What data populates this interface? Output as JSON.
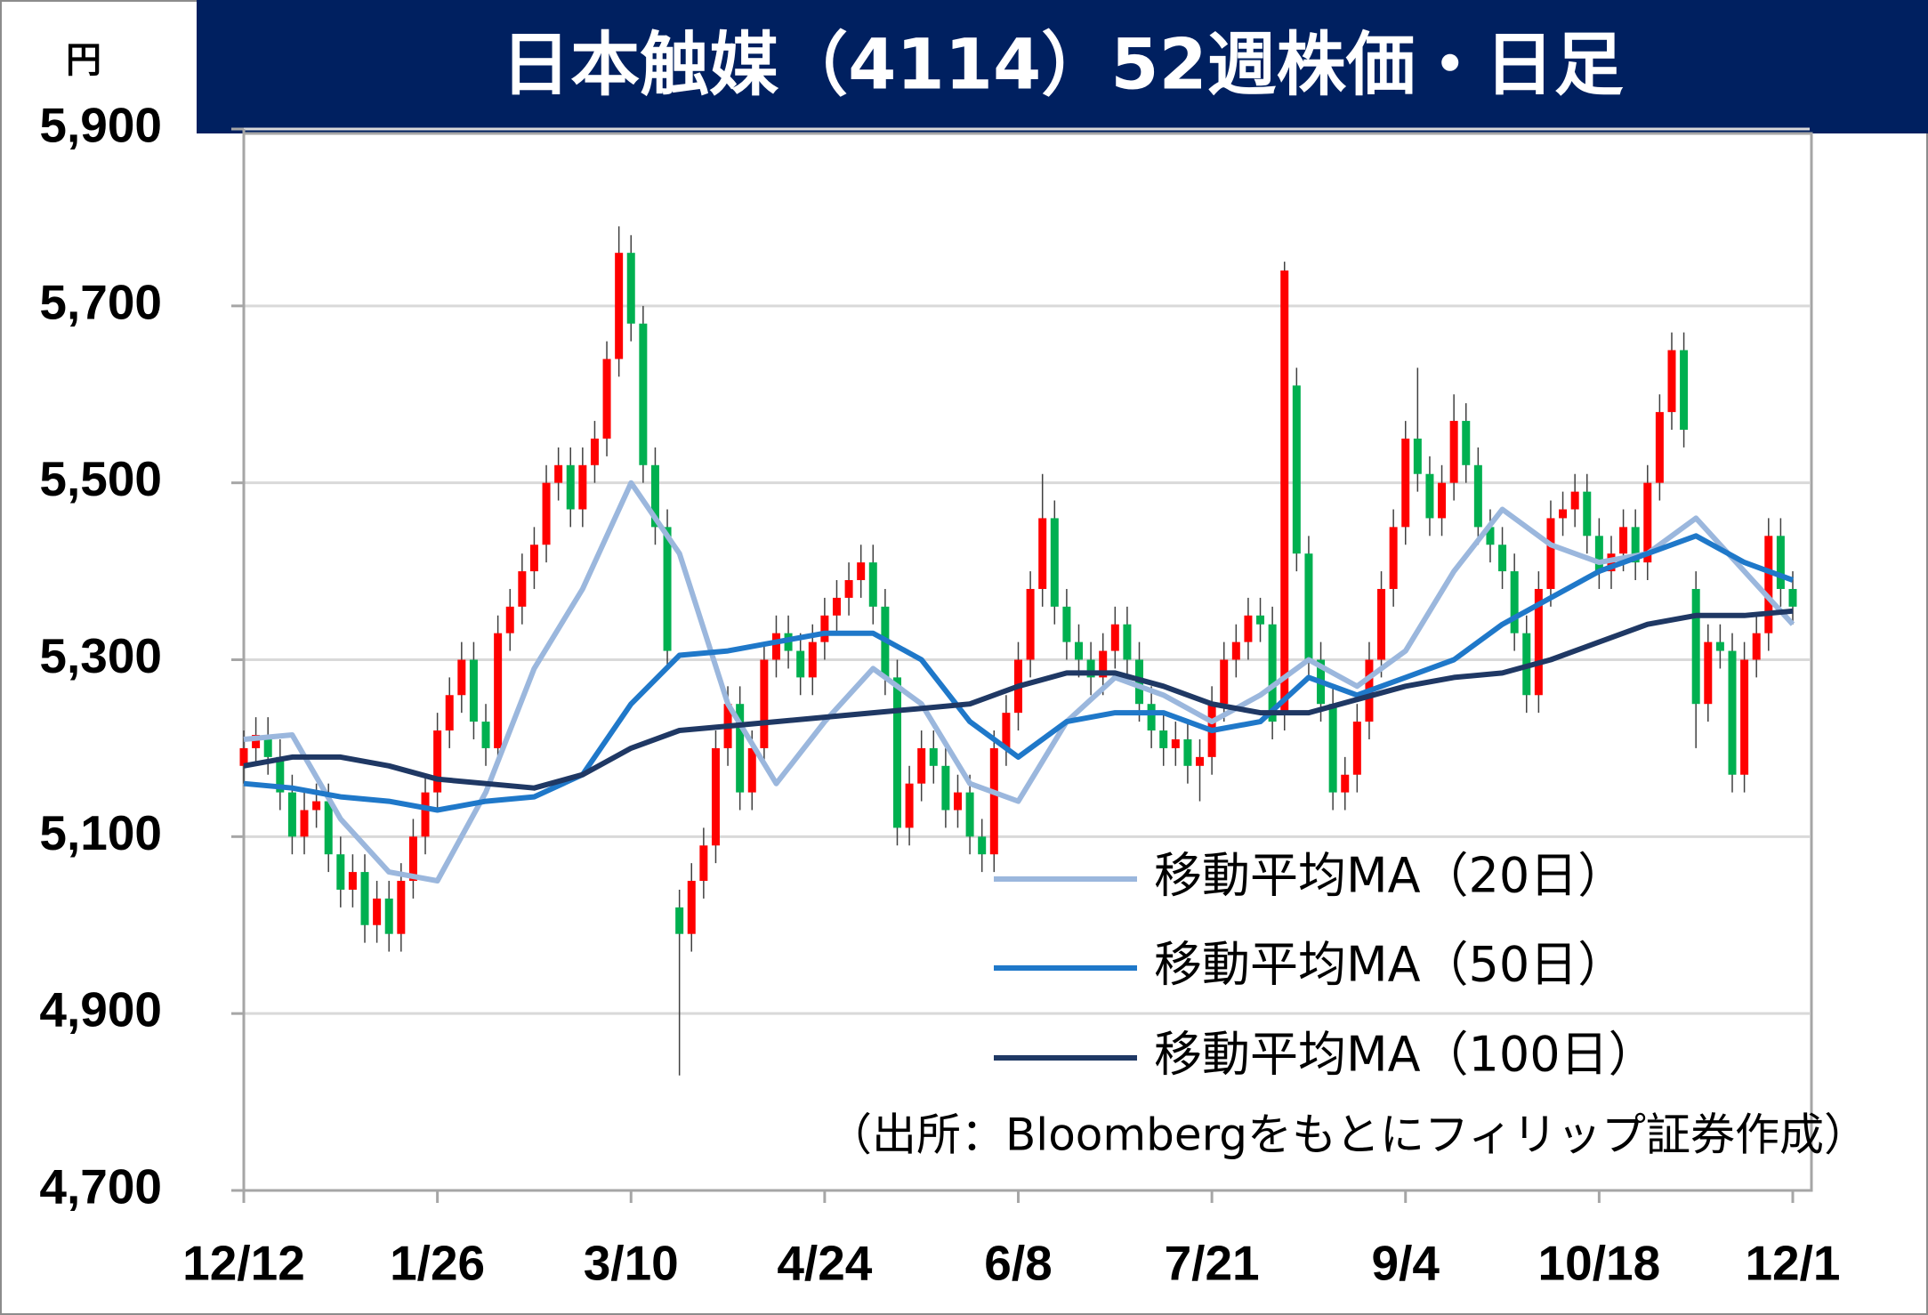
{
  "chart_data": {
    "type": "candlestick",
    "title": "日本触媒（4114）52週株価・日足",
    "y_unit": "円",
    "source": "（出所：Bloombergをもとにフィリップ証券作成）",
    "categories": [
      "12/12",
      null,
      null,
      null,
      null,
      null,
      null,
      null,
      null,
      null,
      null,
      null,
      null,
      null,
      null,
      null,
      "1/26",
      null,
      null,
      null,
      null,
      null,
      null,
      null,
      null,
      null,
      null,
      null,
      null,
      null,
      null,
      null,
      "3/10",
      null,
      null,
      null,
      null,
      null,
      null,
      null,
      null,
      null,
      null,
      null,
      null,
      null,
      null,
      null,
      "4/24",
      null,
      null,
      null,
      null,
      null,
      null,
      null,
      null,
      null,
      null,
      null,
      null,
      null,
      null,
      null,
      "6/8",
      null,
      null,
      null,
      null,
      null,
      null,
      null,
      null,
      null,
      null,
      null,
      null,
      null,
      null,
      null,
      "7/21",
      null,
      null,
      null,
      null,
      null,
      null,
      null,
      null,
      null,
      null,
      null,
      null,
      null,
      null,
      null,
      "9/4",
      null,
      null,
      null,
      null,
      null,
      null,
      null,
      null,
      null,
      null,
      null,
      null,
      null,
      null,
      null,
      "10/18",
      null,
      null,
      null,
      null,
      null,
      null,
      null,
      null,
      null,
      null,
      null,
      null,
      null,
      null,
      null,
      "12/1"
    ],
    "open": [
      5180,
      5200,
      5215,
      5190,
      5150,
      5100,
      5130,
      5140,
      5080,
      5040,
      5060,
      5000,
      5030,
      4990,
      5050,
      5100,
      5150,
      5220,
      5260,
      5300,
      5230,
      5200,
      5330,
      5360,
      5400,
      5430,
      5500,
      5520,
      5470,
      5520,
      5550,
      5640,
      5760,
      5680,
      5520,
      5450,
      5020,
      4990,
      5050,
      5090,
      5200,
      5250,
      5150,
      5200,
      5300,
      5330,
      5310,
      5280,
      5320,
      5350,
      5370,
      5390,
      5410,
      5360,
      5280,
      5110,
      5160,
      5200,
      5180,
      5130,
      5150,
      5100,
      5080,
      5200,
      5240,
      5300,
      5380,
      5460,
      5360,
      5320,
      5300,
      5280,
      5310,
      5340,
      5300,
      5250,
      5220,
      5200,
      5210,
      5180,
      5190,
      5250,
      5300,
      5320,
      5350,
      5340,
      5240,
      5610,
      5420,
      5300,
      5250,
      5150,
      5170,
      5230,
      5300,
      5380,
      5450,
      5550,
      5510,
      5460,
      5500,
      5570,
      5520,
      5450,
      5430,
      5400,
      5330,
      5260,
      5380,
      5460,
      5470,
      5490,
      5440,
      5400,
      5420,
      5450,
      5410,
      5500,
      5580,
      5650,
      5380,
      5250,
      5320,
      5310,
      5170,
      5300,
      5330,
      5440,
      5380
    ],
    "high": [
      5220,
      5235,
      5235,
      5210,
      5170,
      5150,
      5160,
      5160,
      5100,
      5080,
      5080,
      5050,
      5050,
      5070,
      5120,
      5170,
      5240,
      5280,
      5320,
      5320,
      5250,
      5350,
      5380,
      5420,
      5450,
      5520,
      5540,
      5540,
      5540,
      5570,
      5660,
      5790,
      5780,
      5700,
      5540,
      5470,
      5040,
      5070,
      5110,
      5220,
      5270,
      5270,
      5220,
      5320,
      5350,
      5350,
      5330,
      5340,
      5370,
      5390,
      5410,
      5430,
      5430,
      5380,
      5300,
      5180,
      5220,
      5220,
      5200,
      5170,
      5170,
      5120,
      5220,
      5260,
      5320,
      5400,
      5510,
      5480,
      5380,
      5340,
      5320,
      5330,
      5360,
      5360,
      5320,
      5270,
      5240,
      5230,
      5230,
      5210,
      5270,
      5320,
      5340,
      5370,
      5370,
      5360,
      5750,
      5630,
      5440,
      5320,
      5270,
      5190,
      5250,
      5320,
      5400,
      5470,
      5570,
      5630,
      5530,
      5520,
      5600,
      5590,
      5540,
      5470,
      5450,
      5420,
      5350,
      5400,
      5480,
      5490,
      5510,
      5510,
      5460,
      5440,
      5470,
      5470,
      5520,
      5600,
      5670,
      5670,
      5400,
      5340,
      5340,
      5330,
      5320,
      5350,
      5460,
      5460,
      5400
    ],
    "low": [
      5160,
      5180,
      5170,
      5130,
      5080,
      5080,
      5110,
      5060,
      5020,
      5020,
      4980,
      4980,
      4970,
      4970,
      5030,
      5080,
      5130,
      5200,
      5240,
      5210,
      5180,
      5180,
      5310,
      5340,
      5380,
      5410,
      5480,
      5450,
      5450,
      5500,
      5530,
      5620,
      5660,
      5500,
      5430,
      5290,
      4830,
      4970,
      5030,
      5070,
      5180,
      5130,
      5130,
      5180,
      5280,
      5290,
      5260,
      5260,
      5300,
      5330,
      5350,
      5370,
      5340,
      5260,
      5090,
      5090,
      5140,
      5160,
      5110,
      5110,
      5080,
      5060,
      5060,
      5180,
      5220,
      5280,
      5360,
      5340,
      5300,
      5280,
      5260,
      5260,
      5290,
      5280,
      5230,
      5200,
      5180,
      5180,
      5160,
      5140,
      5170,
      5230,
      5280,
      5300,
      5320,
      5210,
      5220,
      5400,
      5280,
      5230,
      5130,
      5130,
      5150,
      5210,
      5280,
      5360,
      5430,
      5490,
      5440,
      5440,
      5480,
      5500,
      5430,
      5410,
      5380,
      5310,
      5240,
      5240,
      5360,
      5440,
      5450,
      5420,
      5380,
      5380,
      5400,
      5390,
      5390,
      5480,
      5560,
      5540,
      5200,
      5230,
      5290,
      5150,
      5150,
      5280,
      5310,
      5360,
      5340
    ],
    "close": [
      5200,
      5215,
      5190,
      5150,
      5100,
      5130,
      5140,
      5080,
      5040,
      5060,
      5000,
      5030,
      4990,
      5050,
      5100,
      5150,
      5220,
      5260,
      5300,
      5230,
      5200,
      5330,
      5360,
      5400,
      5430,
      5500,
      5520,
      5470,
      5520,
      5550,
      5640,
      5760,
      5680,
      5520,
      5450,
      5310,
      4990,
      5050,
      5090,
      5200,
      5250,
      5150,
      5200,
      5300,
      5330,
      5310,
      5280,
      5320,
      5350,
      5370,
      5390,
      5410,
      5360,
      5280,
      5110,
      5160,
      5200,
      5180,
      5130,
      5150,
      5100,
      5080,
      5200,
      5240,
      5300,
      5380,
      5460,
      5360,
      5320,
      5300,
      5280,
      5310,
      5340,
      5300,
      5250,
      5220,
      5200,
      5210,
      5180,
      5190,
      5250,
      5300,
      5320,
      5350,
      5340,
      5230,
      5740,
      5420,
      5300,
      5250,
      5150,
      5170,
      5230,
      5300,
      5380,
      5450,
      5550,
      5510,
      5460,
      5500,
      5570,
      5520,
      5450,
      5430,
      5400,
      5330,
      5260,
      5380,
      5460,
      5470,
      5490,
      5440,
      5400,
      5420,
      5450,
      5410,
      5500,
      5580,
      5650,
      5560,
      5250,
      5320,
      5310,
      5170,
      5300,
      5330,
      5440,
      5380,
      5360
    ],
    "up_color": "#ff0000",
    "down_color": "#00b050",
    "series": [
      {
        "name": "移動平均MA（20日）",
        "color": "#9bb7dd",
        "x": [
          0,
          4,
          8,
          12,
          16,
          20,
          24,
          28,
          32,
          36,
          40,
          44,
          48,
          52,
          56,
          60,
          64,
          68,
          72,
          76,
          80,
          84,
          88,
          92,
          96,
          100,
          104,
          108,
          112,
          116,
          120,
          124,
          128
        ],
        "values": [
          5210,
          5215,
          5120,
          5060,
          5050,
          5150,
          5290,
          5380,
          5500,
          5420,
          5250,
          5160,
          5230,
          5290,
          5250,
          5160,
          5140,
          5230,
          5280,
          5260,
          5230,
          5260,
          5300,
          5270,
          5310,
          5400,
          5470,
          5430,
          5410,
          5420,
          5460,
          5400,
          5340
        ]
      },
      {
        "name": "移動平均MA（50日）",
        "color": "#1f78c9",
        "x": [
          0,
          4,
          8,
          12,
          16,
          20,
          24,
          28,
          32,
          36,
          40,
          44,
          48,
          52,
          56,
          60,
          64,
          68,
          72,
          76,
          80,
          84,
          88,
          92,
          96,
          100,
          104,
          108,
          112,
          116,
          120,
          124,
          128
        ],
        "values": [
          5160,
          5155,
          5145,
          5140,
          5130,
          5140,
          5145,
          5170,
          5250,
          5305,
          5310,
          5320,
          5330,
          5330,
          5300,
          5230,
          5190,
          5230,
          5240,
          5240,
          5220,
          5230,
          5280,
          5260,
          5280,
          5300,
          5340,
          5370,
          5400,
          5420,
          5440,
          5410,
          5390
        ]
      },
      {
        "name": "移動平均MA（100日）",
        "color": "#1f3864",
        "x": [
          0,
          4,
          8,
          12,
          16,
          20,
          24,
          28,
          32,
          36,
          40,
          44,
          48,
          52,
          56,
          60,
          64,
          68,
          72,
          76,
          80,
          84,
          88,
          92,
          96,
          100,
          104,
          108,
          112,
          116,
          120,
          124,
          128
        ],
        "values": [
          5180,
          5190,
          5190,
          5180,
          5165,
          5160,
          5155,
          5170,
          5200,
          5220,
          5225,
          5230,
          5235,
          5240,
          5245,
          5250,
          5270,
          5285,
          5285,
          5270,
          5250,
          5240,
          5240,
          5255,
          5270,
          5280,
          5285,
          5300,
          5320,
          5340,
          5350,
          5350,
          5355
        ]
      }
    ],
    "ylim": [
      4700,
      5900
    ],
    "yticks": [
      {
        "value": 4700,
        "label": "4,700"
      },
      {
        "value": 4900,
        "label": "4,900"
      },
      {
        "value": 5100,
        "label": "5,100"
      },
      {
        "value": 5300,
        "label": "5,300"
      },
      {
        "value": 5500,
        "label": "5,500"
      },
      {
        "value": 5700,
        "label": "5,700"
      },
      {
        "value": 5900,
        "label": "5,900"
      }
    ],
    "grid": true
  }
}
